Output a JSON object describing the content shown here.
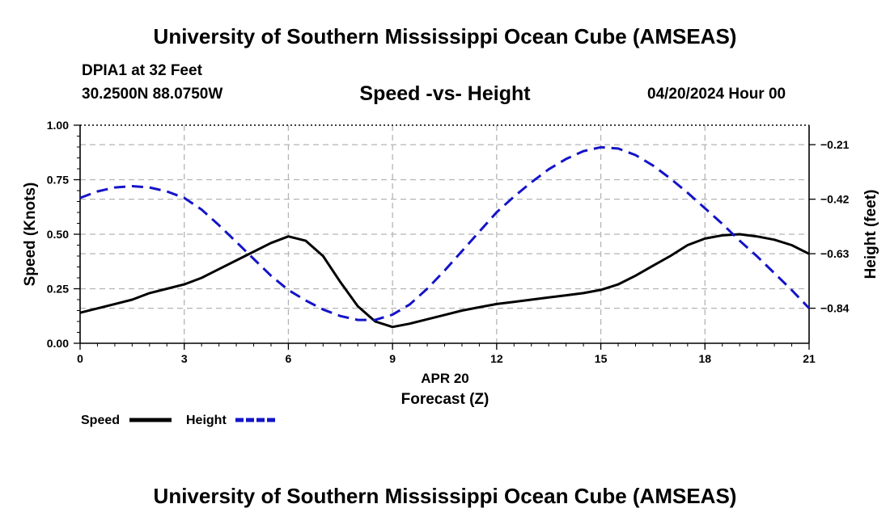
{
  "header": {
    "title_top": "University of Southern Mississippi Ocean Cube (AMSEAS)",
    "title_bottom": "University of Southern Mississippi Ocean Cube (AMSEAS)",
    "station": "DPIA1 at 32 Feet",
    "coords": "30.2500N  88.0750W",
    "datetime": "04/20/2024 Hour 00"
  },
  "chart_data": {
    "type": "line",
    "title": "Speed -vs- Height",
    "xlabel": "Forecast (Z)",
    "date_label": "APR 20",
    "ylabel_left": "Speed (Knots)",
    "ylabel_right": "Height (feet)",
    "x_ticks": [
      "0",
      "3",
      "6",
      "9",
      "12",
      "15",
      "18",
      "21"
    ],
    "y_left_ticks": [
      "0.00",
      "0.25",
      "0.50",
      "0.75",
      "1.00"
    ],
    "y_right_ticks": [
      "−0.21",
      "−0.42",
      "−0.63",
      "−0.84"
    ],
    "xlim": [
      0,
      21
    ],
    "ylim_left": [
      0,
      1.0
    ],
    "ylim_right": [
      -0.975,
      -0.135
    ],
    "series": [
      {
        "name": "Speed",
        "axis": "left",
        "color": "#000000",
        "style": "solid",
        "x": [
          0,
          0.5,
          1,
          1.5,
          2,
          2.5,
          3,
          3.5,
          4,
          4.5,
          5,
          5.5,
          6,
          6.5,
          7,
          7.5,
          8,
          8.5,
          9,
          9.5,
          10,
          10.5,
          11,
          11.5,
          12,
          12.5,
          13,
          13.5,
          14,
          14.5,
          15,
          15.5,
          16,
          16.5,
          17,
          17.5,
          18,
          18.5,
          19,
          19.5,
          20,
          20.5,
          21
        ],
        "values": [
          0.14,
          0.16,
          0.18,
          0.2,
          0.23,
          0.25,
          0.27,
          0.3,
          0.34,
          0.38,
          0.42,
          0.46,
          0.49,
          0.47,
          0.4,
          0.28,
          0.17,
          0.1,
          0.075,
          0.09,
          0.11,
          0.13,
          0.15,
          0.165,
          0.18,
          0.19,
          0.2,
          0.21,
          0.22,
          0.23,
          0.245,
          0.27,
          0.31,
          0.355,
          0.4,
          0.45,
          0.48,
          0.495,
          0.5,
          0.49,
          0.475,
          0.45,
          0.41
        ]
      },
      {
        "name": "Height",
        "axis": "right",
        "color": "#1414c8",
        "style": "dashed",
        "x": [
          0,
          0.5,
          1,
          1.5,
          2,
          2.5,
          3,
          3.5,
          4,
          4.5,
          5,
          5.5,
          6,
          6.5,
          7,
          7.5,
          8,
          8.5,
          9,
          9.5,
          10,
          10.5,
          11,
          11.5,
          12,
          12.5,
          13,
          13.5,
          14,
          14.5,
          15,
          15.5,
          16,
          16.5,
          17,
          17.5,
          18,
          18.5,
          19,
          19.5,
          20,
          20.5,
          21
        ],
        "values": [
          -0.415,
          -0.39,
          -0.375,
          -0.37,
          -0.375,
          -0.39,
          -0.415,
          -0.46,
          -0.52,
          -0.585,
          -0.65,
          -0.715,
          -0.77,
          -0.81,
          -0.845,
          -0.87,
          -0.885,
          -0.885,
          -0.865,
          -0.825,
          -0.765,
          -0.695,
          -0.62,
          -0.545,
          -0.47,
          -0.41,
          -0.355,
          -0.305,
          -0.265,
          -0.235,
          -0.22,
          -0.225,
          -0.25,
          -0.29,
          -0.34,
          -0.395,
          -0.455,
          -0.515,
          -0.58,
          -0.64,
          -0.705,
          -0.77,
          -0.84
        ]
      }
    ],
    "legend": [
      {
        "label": "Speed",
        "color": "#000000",
        "style": "solid"
      },
      {
        "label": "Height",
        "color": "#1414c8",
        "style": "dashed"
      }
    ]
  }
}
